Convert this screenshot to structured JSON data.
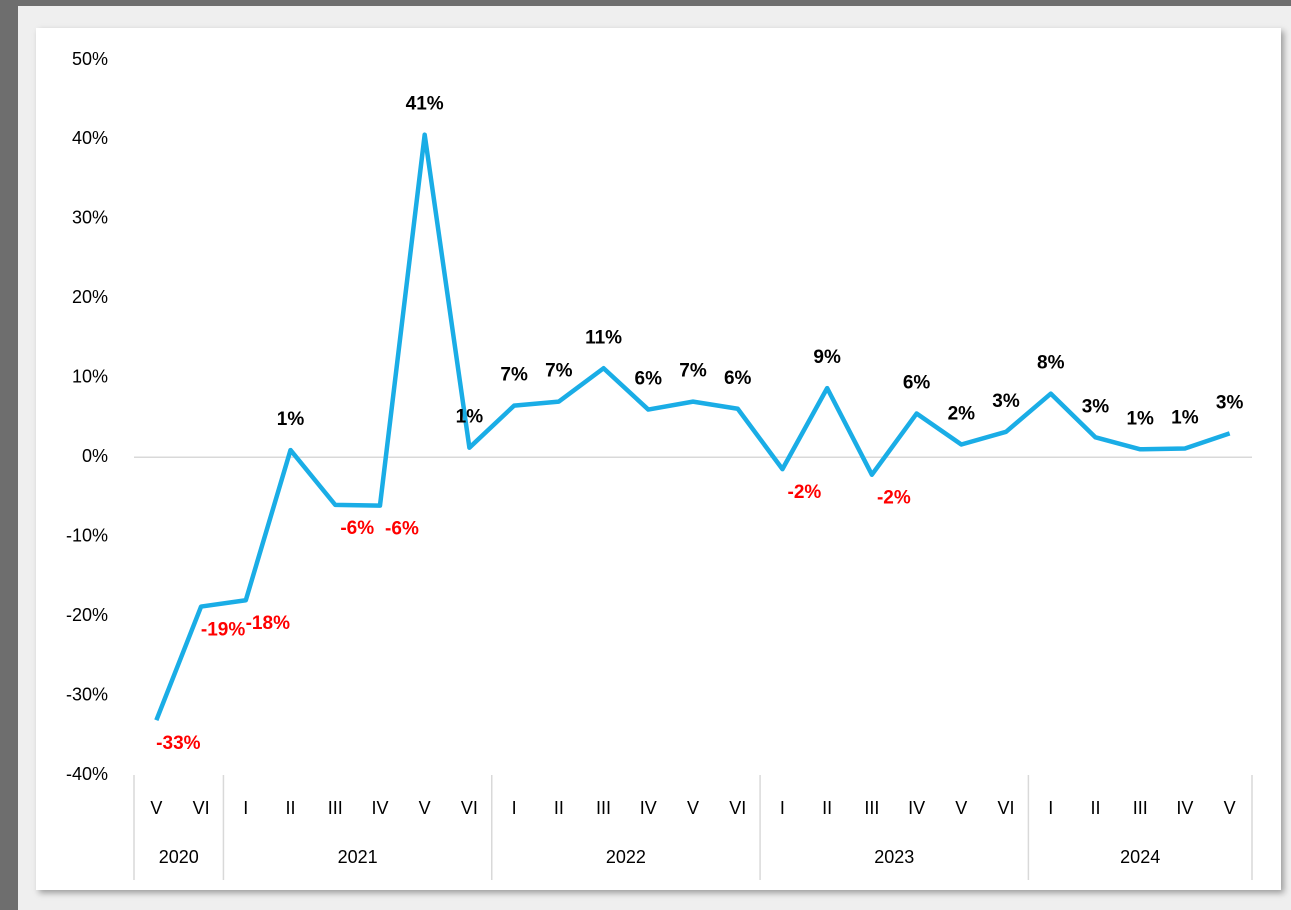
{
  "chart_data": {
    "type": "line",
    "groups": [
      {
        "name": "2020",
        "categories": [
          "V",
          "VI"
        ]
      },
      {
        "name": "2021",
        "categories": [
          "I",
          "II",
          "III",
          "IV",
          "V",
          "VI"
        ]
      },
      {
        "name": "2022",
        "categories": [
          "I",
          "II",
          "III",
          "IV",
          "V",
          "VI"
        ]
      },
      {
        "name": "2023",
        "categories": [
          "I",
          "II",
          "III",
          "IV",
          "V",
          "VI"
        ]
      },
      {
        "name": "2024",
        "categories": [
          "I",
          "II",
          "III",
          "IV",
          "V"
        ]
      }
    ],
    "values": [
      -33.1,
      -18.8,
      -18,
      0.9,
      -6,
      -6.1,
      40.6,
      1.2,
      6.5,
      7,
      11.2,
      6,
      7,
      6.1,
      -1.5,
      8.7,
      -2.2,
      5.5,
      1.6,
      3.2,
      8,
      2.5,
      1,
      1.1,
      3
    ],
    "value_labels": [
      "-33%",
      "-19%",
      "-18%",
      "1%",
      "-6%",
      "-6%",
      "41%",
      "1%",
      "7%",
      "7%",
      "11%",
      "6%",
      "7%",
      "6%",
      "-2%",
      "9%",
      "-2%",
      "6%",
      "2%",
      "3%",
      "8%",
      "3%",
      "1%",
      "1%",
      "3%"
    ],
    "color": "#1aade6",
    "positive_label_color": "#000000",
    "negative_label_color": "#ff0000",
    "ylim": [
      -40,
      50
    ],
    "yticks": [
      {
        "value": -40,
        "label": "-40%"
      },
      {
        "value": -30,
        "label": "-30%"
      },
      {
        "value": -20,
        "label": "-20%"
      },
      {
        "value": -10,
        "label": "-10%"
      },
      {
        "value": 0,
        "label": "0%"
      },
      {
        "value": 10,
        "label": "10%"
      },
      {
        "value": 20,
        "label": "20%"
      },
      {
        "value": 30,
        "label": "30%"
      },
      {
        "value": 40,
        "label": "40%"
      },
      {
        "value": 50,
        "label": "50%"
      }
    ]
  }
}
